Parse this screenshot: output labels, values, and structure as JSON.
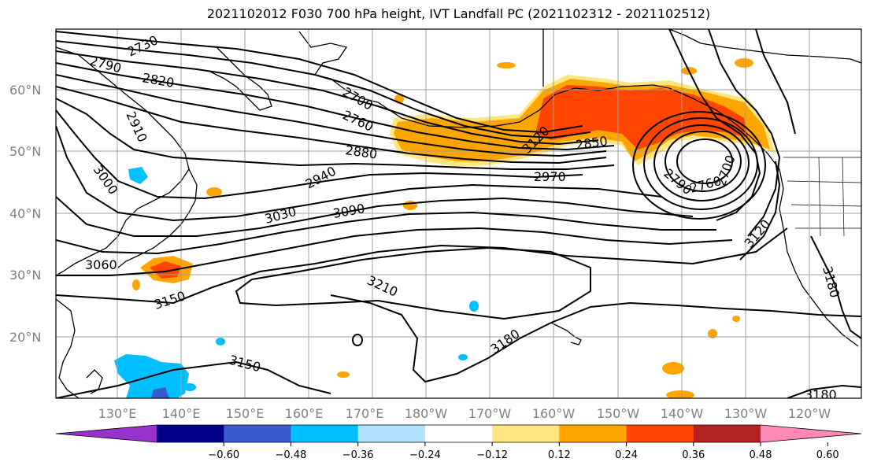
{
  "title": "2021102012 F030 700 hPa height, IVT Landfall PC (2021102312 - 2021102512)",
  "lat_labels": [
    "60°N",
    "50°N",
    "40°N",
    "30°N",
    "20°N"
  ],
  "lon_labels": [
    "130°E",
    "140°E",
    "150°E",
    "160°E",
    "170°E",
    "180°W",
    "170°W",
    "160°W",
    "150°W",
    "140°W",
    "130°W",
    "120°W"
  ],
  "contour_labels": [
    "2730",
    "2790",
    "2820",
    "2700",
    "2760",
    "2910",
    "2880",
    "3000",
    "2940",
    "3030",
    "3090",
    "2970",
    "3060",
    "3150",
    "3210",
    "3180",
    "3150",
    "3120",
    "3180",
    "3180",
    "2850",
    "3120",
    "2790",
    "2760",
    "2700"
  ],
  "colorbar": {
    "colors": [
      "#9932cc",
      "#00008b",
      "#3a5bcd",
      "#00bfff",
      "#b0e2ff",
      "#ffffff",
      "#ffe680",
      "#ffa500",
      "#ff4500",
      "#b22222",
      "#ff88b4"
    ],
    "tick_labels": [
      "−0.60",
      "−0.48",
      "−0.36",
      "−0.24",
      "−0.12",
      "0.12",
      "0.24",
      "0.36",
      "0.48",
      "0.60"
    ]
  },
  "colors": {
    "ivt_yellow": "#ffe680",
    "ivt_orange": "#ffa500",
    "ivt_red": "#ff4500",
    "ivt_light_blue": "#b0e2ff",
    "ivt_blue": "#00bfff",
    "ivt_royal": "#3a5bcd",
    "grid": "#a0a0a0",
    "contour": "#000000"
  }
}
